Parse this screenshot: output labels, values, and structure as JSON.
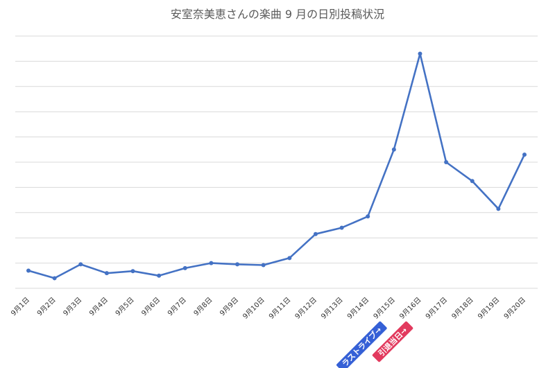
{
  "chart_data": {
    "type": "line",
    "title": "安室奈美恵さんの楽曲 9 月の日別投稿状況",
    "xlabel": "",
    "ylabel": "",
    "categories": [
      "9月1日",
      "9月2日",
      "9月3日",
      "9月4日",
      "9月5日",
      "9月6日",
      "9月7日",
      "9月8日",
      "9月9日",
      "9月10日",
      "9月11日",
      "9月12日",
      "9月13日",
      "9月14日",
      "9月15日",
      "9月16日",
      "9月17日",
      "9月18日",
      "9月19日",
      "9月20日"
    ],
    "series": [
      {
        "color": "#4472c4",
        "values": [
          0.7,
          0.4,
          0.95,
          0.6,
          0.68,
          0.5,
          0.8,
          1.0,
          0.95,
          0.92,
          1.2,
          2.15,
          2.4,
          2.85,
          5.5,
          9.3,
          5.0,
          4.25,
          3.15,
          5.3
        ]
      }
    ],
    "ylim": [
      0,
      10
    ],
    "yticks": [
      0,
      1,
      2,
      3,
      4,
      5,
      6,
      7,
      8,
      9,
      10
    ],
    "grid": true,
    "legend": "none",
    "annotations": [
      {
        "text": "ラストライブ→",
        "category": "9月15日",
        "color": "#3560d6"
      },
      {
        "text": "引退当日→",
        "category": "9月16日",
        "color": "#e23a5e"
      }
    ]
  }
}
